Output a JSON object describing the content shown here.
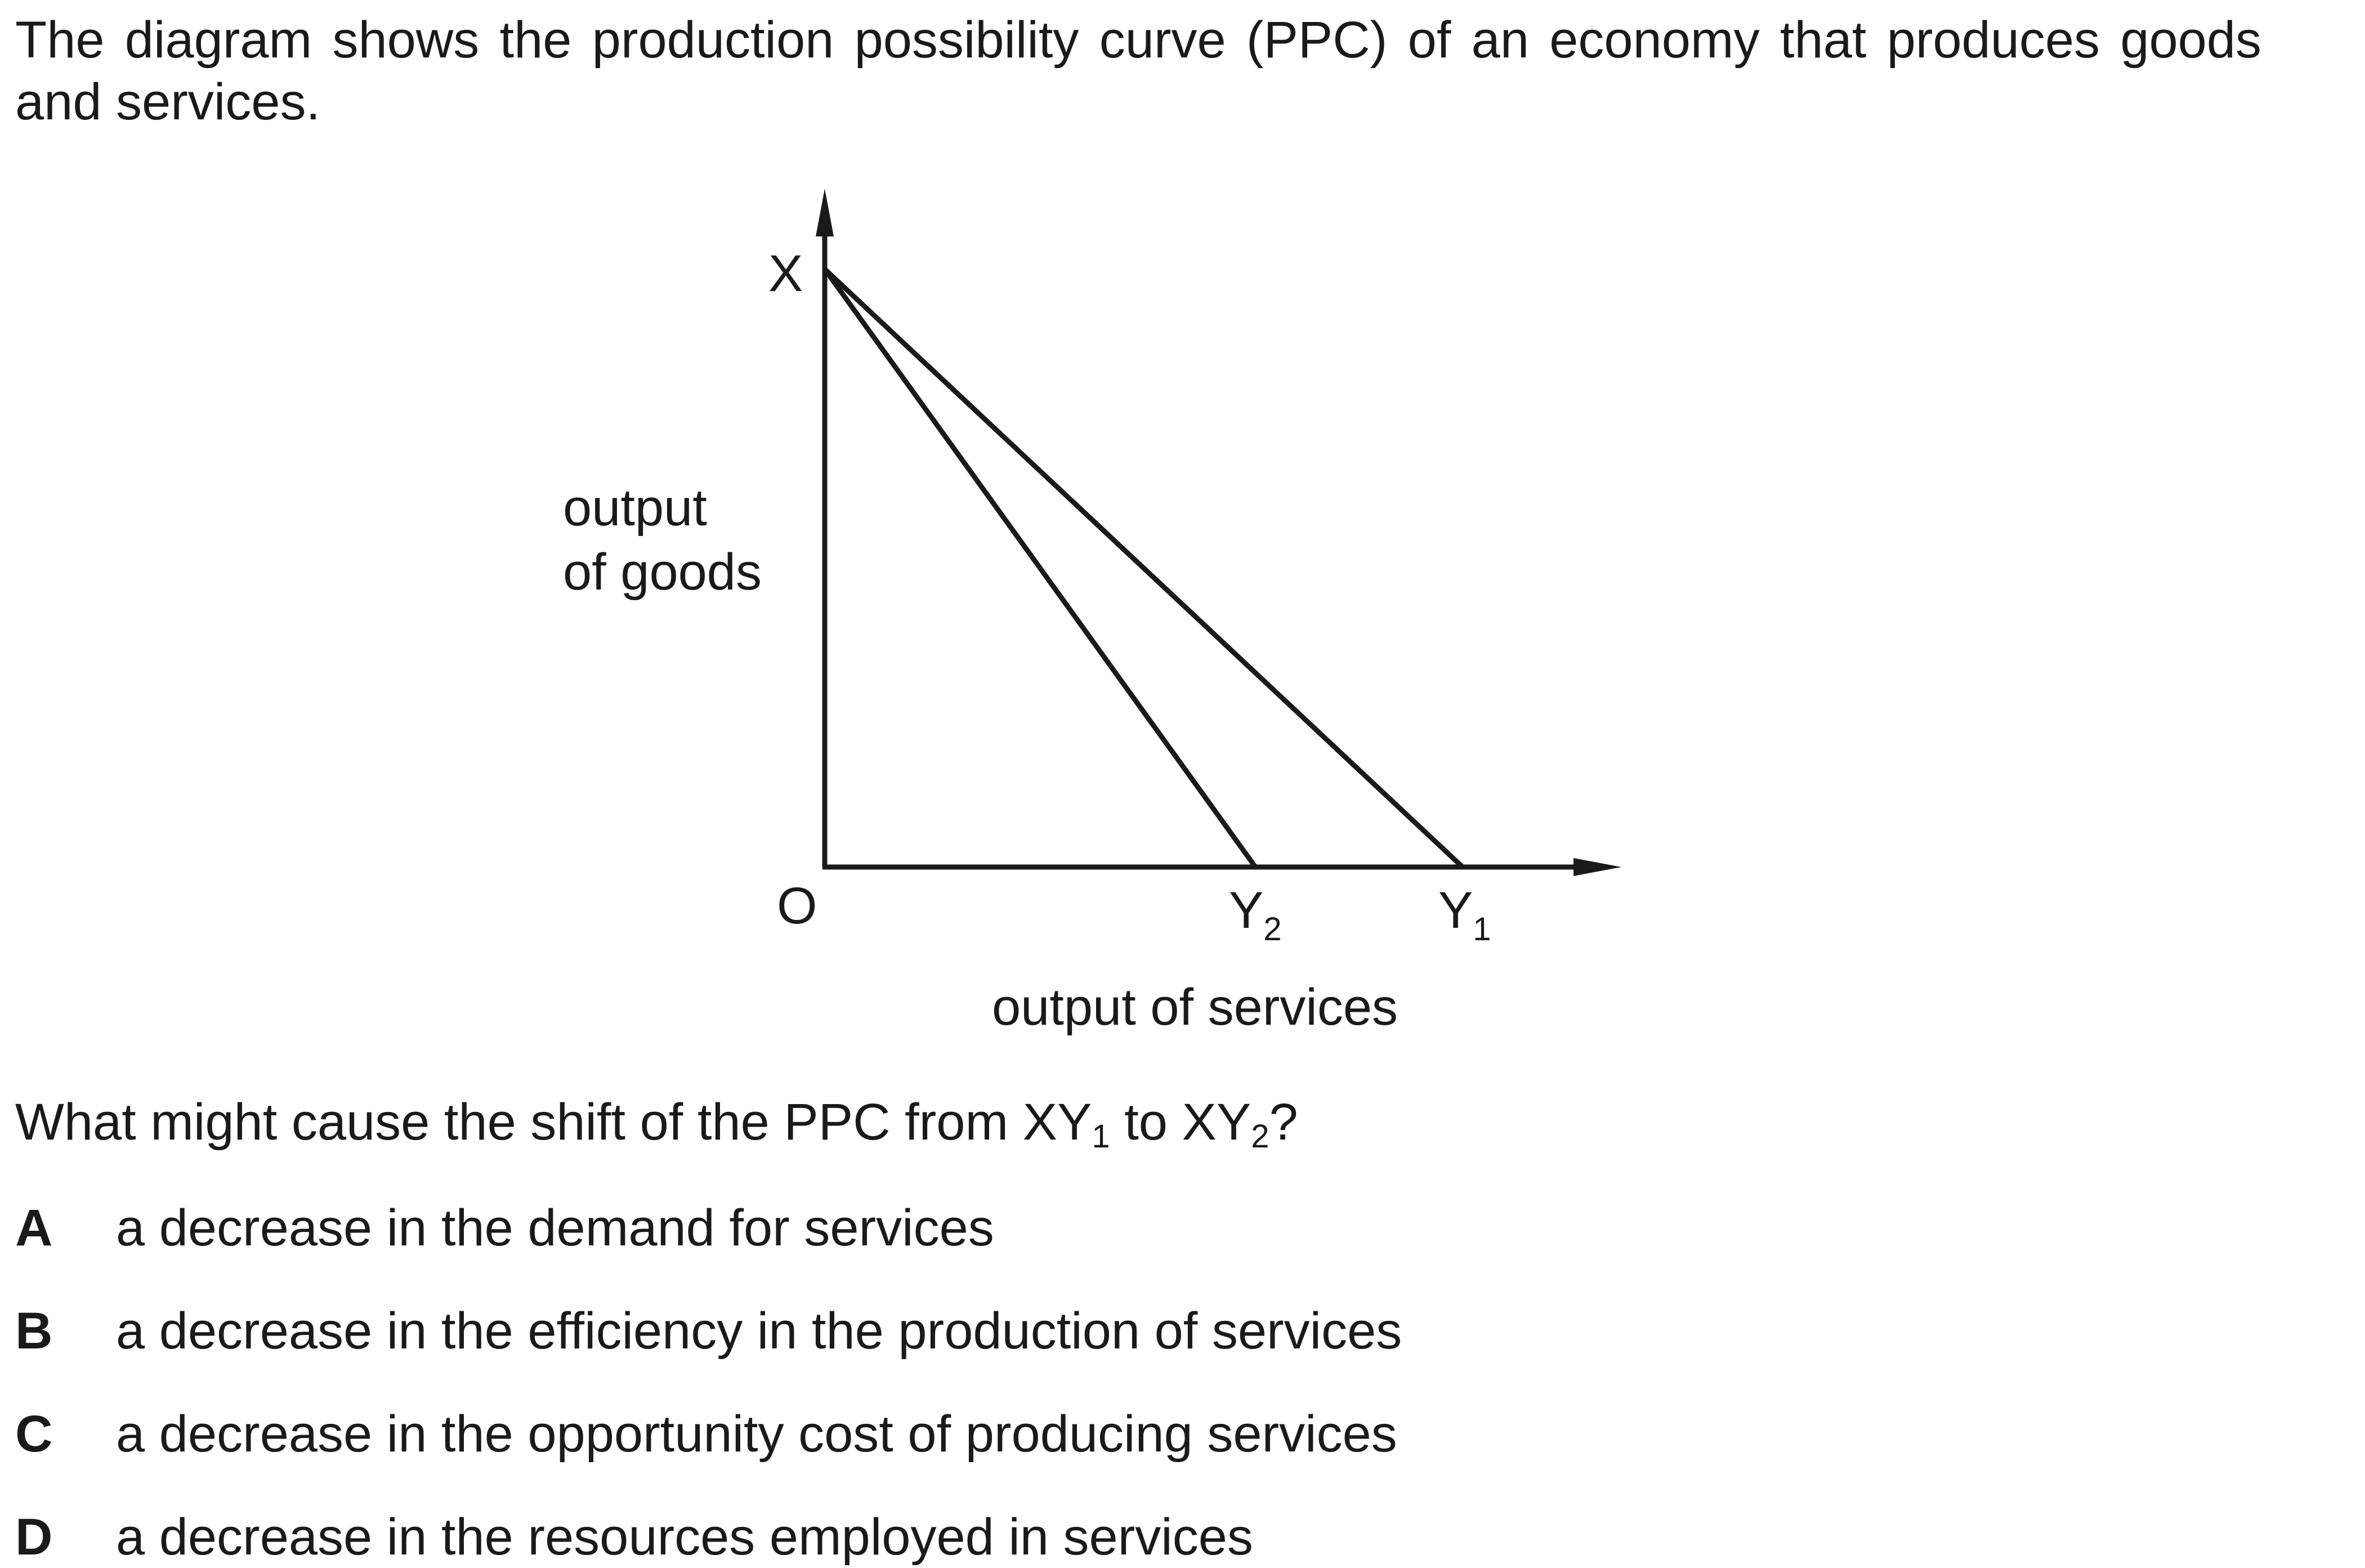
{
  "intro": {
    "line1": "The diagram shows the production possibility curve (PPC) of an economy that produces goods",
    "line2": "and services."
  },
  "diagram": {
    "labels": {
      "x_point": "X",
      "origin": "O",
      "y2_main": "Y",
      "y2_sub": "2",
      "y1_main": "Y",
      "y1_sub": "1",
      "y_axis_line1": "output",
      "y_axis_line2": "of goods",
      "x_axis": "output of services"
    },
    "curves": [
      {
        "name": "XY1",
        "from": "X",
        "to": "Y1"
      },
      {
        "name": "XY2",
        "from": "X",
        "to": "Y2"
      }
    ],
    "colors": {
      "line": "#1a1a1a"
    }
  },
  "question": {
    "part1": "What might cause the shift of the PPC from XY",
    "sub1": "1",
    "part2": " to XY",
    "sub2": "2",
    "part3": "?"
  },
  "options": [
    {
      "letter": "A",
      "text": "a decrease in the demand for services"
    },
    {
      "letter": "B",
      "text": "a decrease in the efficiency in the production of services"
    },
    {
      "letter": "C",
      "text": "a decrease in the opportunity cost of producing services"
    },
    {
      "letter": "D",
      "text": "a decrease in the resources employed in services"
    }
  ]
}
